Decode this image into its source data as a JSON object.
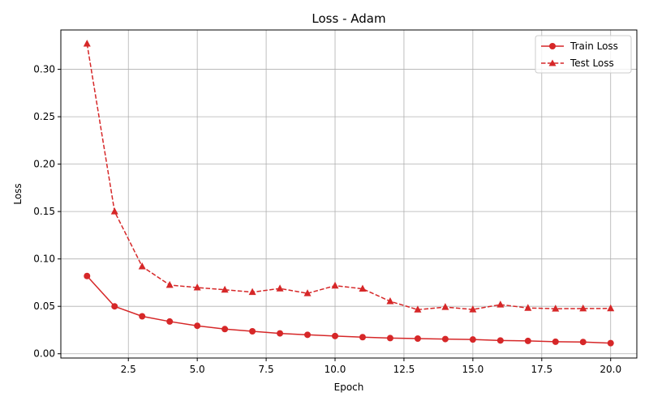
{
  "chart_data": {
    "type": "line",
    "title": "Loss - Adam",
    "xlabel": "Epoch",
    "ylabel": "Loss",
    "xlim": [
      0.05,
      20.95
    ],
    "ylim": [
      -0.0045,
      0.3415
    ],
    "xticks": [
      2.5,
      5.0,
      7.5,
      10.0,
      12.5,
      15.0,
      17.5,
      20.0
    ],
    "xtick_labels": [
      "2.5",
      "5.0",
      "7.5",
      "10.0",
      "12.5",
      "15.0",
      "17.5",
      "20.0"
    ],
    "yticks": [
      0.0,
      0.05,
      0.1,
      0.15,
      0.2,
      0.25,
      0.3
    ],
    "ytick_labels": [
      "0.00",
      "0.05",
      "0.10",
      "0.15",
      "0.20",
      "0.25",
      "0.30"
    ],
    "grid": true,
    "legend_position": "top-right",
    "x": [
      1,
      2,
      3,
      4,
      5,
      6,
      7,
      8,
      9,
      10,
      11,
      12,
      13,
      14,
      15,
      16,
      17,
      18,
      19,
      20
    ],
    "series": [
      {
        "name": "Train Loss",
        "color": "#d62728",
        "line_style": "solid",
        "marker": "circle",
        "values": [
          0.082,
          0.05,
          0.0395,
          0.034,
          0.0295,
          0.026,
          0.0237,
          0.0215,
          0.02,
          0.0187,
          0.0175,
          0.0165,
          0.016,
          0.0155,
          0.015,
          0.014,
          0.0135,
          0.0127,
          0.0124,
          0.0112
        ]
      },
      {
        "name": "Test Loss",
        "color": "#d62728",
        "line_style": "dashed",
        "marker": "triangle",
        "values": [
          0.327,
          0.15,
          0.092,
          0.0725,
          0.0698,
          0.0675,
          0.065,
          0.0688,
          0.0637,
          0.0718,
          0.0685,
          0.0553,
          0.0465,
          0.0492,
          0.0467,
          0.0518,
          0.0483,
          0.0475,
          0.0477,
          0.0478
        ]
      }
    ]
  }
}
